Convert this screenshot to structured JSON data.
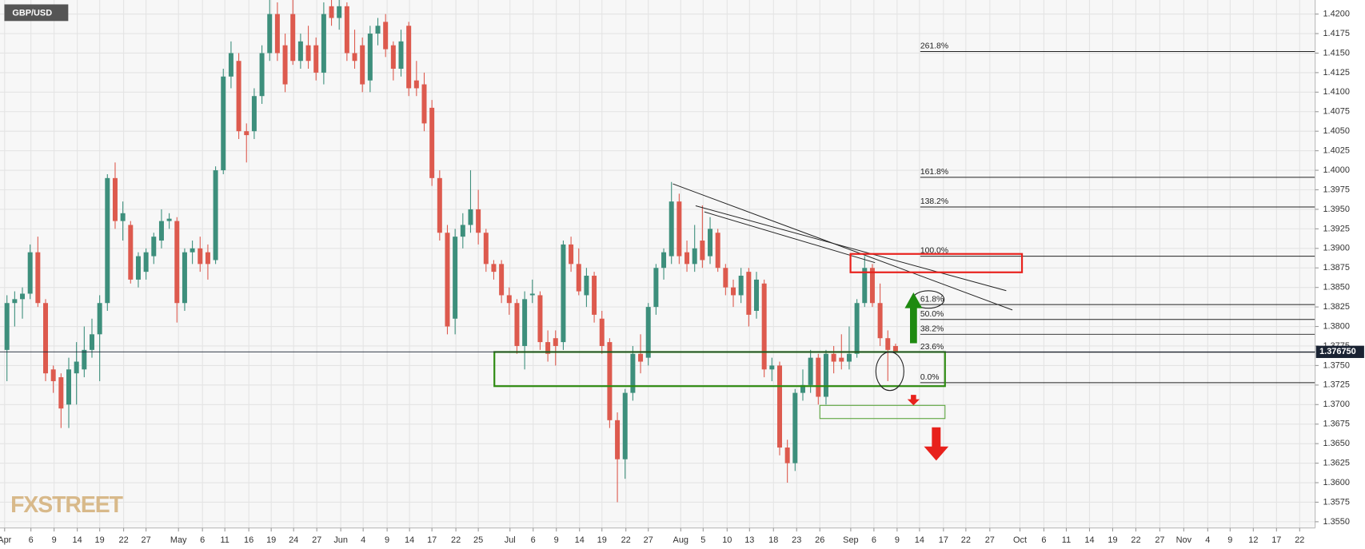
{
  "chart_data": {
    "type": "candlestick",
    "title": "GBP/USD",
    "watermark": "FXSTREET",
    "up_color": "#3d8f7c",
    "down_color": "#dd5a4e",
    "grid": true,
    "ylim": [
      1.3542,
      1.4218
    ],
    "yticks": [
      {
        "value": 1.355,
        "label": "1.3550"
      },
      {
        "value": 1.3575,
        "label": "1.3575"
      },
      {
        "value": 1.36,
        "label": "1.3600"
      },
      {
        "value": 1.3625,
        "label": "1.3625"
      },
      {
        "value": 1.365,
        "label": "1.3650"
      },
      {
        "value": 1.3675,
        "label": "1.3675"
      },
      {
        "value": 1.37,
        "label": "1.3700"
      },
      {
        "value": 1.3725,
        "label": "1.3725"
      },
      {
        "value": 1.375,
        "label": "1.3750"
      },
      {
        "value": 1.3775,
        "label": "1.3775"
      },
      {
        "value": 1.38,
        "label": "1.3800"
      },
      {
        "value": 1.3825,
        "label": "1.3825"
      },
      {
        "value": 1.385,
        "label": "1.3850"
      },
      {
        "value": 1.3875,
        "label": "1.3875"
      },
      {
        "value": 1.39,
        "label": "1.3900"
      },
      {
        "value": 1.3925,
        "label": "1.3925"
      },
      {
        "value": 1.395,
        "label": "1.3950"
      },
      {
        "value": 1.3975,
        "label": "1.3975"
      },
      {
        "value": 1.4,
        "label": "1.4000"
      },
      {
        "value": 1.4025,
        "label": "1.4025"
      },
      {
        "value": 1.405,
        "label": "1.4050"
      },
      {
        "value": 1.4075,
        "label": "1.4075"
      },
      {
        "value": 1.41,
        "label": "1.4100"
      },
      {
        "value": 1.4125,
        "label": "1.4125"
      },
      {
        "value": 1.415,
        "label": "1.4150"
      },
      {
        "value": 1.4175,
        "label": "1.4175"
      },
      {
        "value": 1.42,
        "label": "1.4200"
      }
    ],
    "xlim": [
      -0.9,
      169.3
    ],
    "xticks": [
      {
        "value": -0.3,
        "label": "Apr"
      },
      {
        "value": 3.1,
        "label": "6"
      },
      {
        "value": 6.1,
        "label": "9"
      },
      {
        "value": 9.1,
        "label": "14"
      },
      {
        "value": 12,
        "label": "19"
      },
      {
        "value": 15.1,
        "label": "22"
      },
      {
        "value": 18,
        "label": "27"
      },
      {
        "value": 22.2,
        "label": "May"
      },
      {
        "value": 25.3,
        "label": "6"
      },
      {
        "value": 28.2,
        "label": "11"
      },
      {
        "value": 31.3,
        "label": "16"
      },
      {
        "value": 34.2,
        "label": "19"
      },
      {
        "value": 37.1,
        "label": "24"
      },
      {
        "value": 40.1,
        "label": "27"
      },
      {
        "value": 43.2,
        "label": "Jun"
      },
      {
        "value": 46.1,
        "label": "4"
      },
      {
        "value": 49.2,
        "label": "9"
      },
      {
        "value": 52.1,
        "label": "14"
      },
      {
        "value": 55,
        "label": "17"
      },
      {
        "value": 58.1,
        "label": "22"
      },
      {
        "value": 61,
        "label": "25"
      },
      {
        "value": 65.1,
        "label": "Jul"
      },
      {
        "value": 68.1,
        "label": "6"
      },
      {
        "value": 71.1,
        "label": "9"
      },
      {
        "value": 74.1,
        "label": "14"
      },
      {
        "value": 77,
        "label": "19"
      },
      {
        "value": 80.1,
        "label": "22"
      },
      {
        "value": 83,
        "label": "27"
      },
      {
        "value": 87.2,
        "label": "Aug"
      },
      {
        "value": 90.1,
        "label": "5"
      },
      {
        "value": 93.2,
        "label": "10"
      },
      {
        "value": 96.1,
        "label": "13"
      },
      {
        "value": 99.2,
        "label": "18"
      },
      {
        "value": 102.2,
        "label": "23"
      },
      {
        "value": 105.2,
        "label": "26"
      },
      {
        "value": 109.2,
        "label": "Sep"
      },
      {
        "value": 112.2,
        "label": "6"
      },
      {
        "value": 115.2,
        "label": "9"
      },
      {
        "value": 118.1,
        "label": "14"
      },
      {
        "value": 121.2,
        "label": "17"
      },
      {
        "value": 124.1,
        "label": "22"
      },
      {
        "value": 127.2,
        "label": "27"
      },
      {
        "value": 131.1,
        "label": "Oct"
      },
      {
        "value": 134.2,
        "label": "6"
      },
      {
        "value": 137.1,
        "label": "11"
      },
      {
        "value": 140.1,
        "label": "14"
      },
      {
        "value": 143.1,
        "label": "19"
      },
      {
        "value": 146.1,
        "label": "22"
      },
      {
        "value": 149.2,
        "label": "27"
      },
      {
        "value": 152.3,
        "label": "Nov"
      },
      {
        "value": 155.4,
        "label": "4"
      },
      {
        "value": 158.3,
        "label": "9"
      },
      {
        "value": 161.3,
        "label": "12"
      },
      {
        "value": 164.3,
        "label": "17"
      },
      {
        "value": 167.3,
        "label": "22"
      }
    ],
    "last_price": {
      "value": 1.37675,
      "label": "1.376750"
    },
    "levels_start": 118.2,
    "levels": [
      {
        "value": 1.4152,
        "label": "261.8%"
      },
      {
        "value": 1.3991,
        "label": "161.8%"
      },
      {
        "value": 1.3953,
        "label": "138.2%"
      },
      {
        "value": 1.389,
        "label": "100.0%"
      },
      {
        "value": 1.3828,
        "label": "61.8%"
      },
      {
        "value": 1.3809,
        "label": "50.0%"
      },
      {
        "value": 1.379,
        "label": "38.2%"
      },
      {
        "value": 1.3767,
        "label": "23.6%"
      },
      {
        "value": 1.3728,
        "label": "0.0%"
      }
    ],
    "candles": [
      [
        1.377,
        1.384,
        1.373,
        1.383
      ],
      [
        1.383,
        1.3845,
        1.38,
        1.3835
      ],
      [
        1.3835,
        1.385,
        1.381,
        1.3842
      ],
      [
        1.3842,
        1.3905,
        1.3835,
        1.3895
      ],
      [
        1.3895,
        1.3915,
        1.3825,
        1.383
      ],
      [
        1.383,
        1.3835,
        1.373,
        1.374
      ],
      [
        1.3745,
        1.375,
        1.3715,
        1.373
      ],
      [
        1.3735,
        1.374,
        1.367,
        1.3695
      ],
      [
        1.37,
        1.376,
        1.367,
        1.3745
      ],
      [
        1.374,
        1.378,
        1.37,
        1.3755
      ],
      [
        1.3745,
        1.38,
        1.3735,
        1.377
      ],
      [
        1.377,
        1.381,
        1.376,
        1.379
      ],
      [
        1.379,
        1.384,
        1.373,
        1.383
      ],
      [
        1.383,
        1.3995,
        1.382,
        1.399
      ],
      [
        1.399,
        1.401,
        1.3925,
        1.3935
      ],
      [
        1.3935,
        1.396,
        1.391,
        1.3945
      ],
      [
        1.393,
        1.3935,
        1.3855,
        1.386
      ],
      [
        1.386,
        1.3895,
        1.385,
        1.389
      ],
      [
        1.387,
        1.39,
        1.386,
        1.3895
      ],
      [
        1.389,
        1.392,
        1.388,
        1.3915
      ],
      [
        1.391,
        1.395,
        1.39,
        1.3935
      ],
      [
        1.3935,
        1.3945,
        1.3925,
        1.3938
      ],
      [
        1.3935,
        1.394,
        1.3805,
        1.383
      ],
      [
        1.383,
        1.39,
        1.382,
        1.3895
      ],
      [
        1.3895,
        1.391,
        1.388,
        1.39
      ],
      [
        1.39,
        1.3915,
        1.387,
        1.388
      ],
      [
        1.3895,
        1.3905,
        1.386,
        1.388
      ],
      [
        1.3885,
        1.4005,
        1.388,
        1.4
      ],
      [
        1.4,
        1.413,
        1.3995,
        1.412
      ],
      [
        1.412,
        1.4165,
        1.4105,
        1.415
      ],
      [
        1.414,
        1.415,
        1.404,
        1.405
      ],
      [
        1.405,
        1.406,
        1.401,
        1.4045
      ],
      [
        1.405,
        1.4105,
        1.404,
        1.4095
      ],
      [
        1.4095,
        1.416,
        1.4085,
        1.415
      ],
      [
        1.415,
        1.423,
        1.414,
        1.42
      ],
      [
        1.42,
        1.4215,
        1.414,
        1.415
      ],
      [
        1.416,
        1.4175,
        1.41,
        1.411
      ],
      [
        1.42,
        1.422,
        1.4135,
        1.414
      ],
      [
        1.414,
        1.4175,
        1.413,
        1.4165
      ],
      [
        1.416,
        1.4185,
        1.413,
        1.414
      ],
      [
        1.416,
        1.417,
        1.4115,
        1.4125
      ],
      [
        1.4125,
        1.4215,
        1.411,
        1.42
      ],
      [
        1.421,
        1.422,
        1.4185,
        1.4195
      ],
      [
        1.4195,
        1.422,
        1.418,
        1.421
      ],
      [
        1.421,
        1.4215,
        1.414,
        1.415
      ],
      [
        1.415,
        1.418,
        1.413,
        1.414
      ],
      [
        1.416,
        1.417,
        1.41,
        1.411
      ],
      [
        1.4115,
        1.4185,
        1.41,
        1.4175
      ],
      [
        1.4175,
        1.4195,
        1.416,
        1.4185
      ],
      [
        1.419,
        1.42,
        1.4145,
        1.4155
      ],
      [
        1.416,
        1.4165,
        1.4115,
        1.413
      ],
      [
        1.413,
        1.418,
        1.412,
        1.4165
      ],
      [
        1.4185,
        1.419,
        1.4095,
        1.4105
      ],
      [
        1.4115,
        1.414,
        1.4095,
        1.4105
      ],
      [
        1.411,
        1.4125,
        1.405,
        1.406
      ],
      [
        1.408,
        1.409,
        1.398,
        1.399
      ],
      [
        1.399,
        1.4,
        1.391,
        1.392
      ],
      [
        1.392,
        1.393,
        1.379,
        1.38
      ],
      [
        1.381,
        1.3925,
        1.379,
        1.3915
      ],
      [
        1.3915,
        1.3945,
        1.39,
        1.393
      ],
      [
        1.393,
        1.4,
        1.392,
        1.395
      ],
      [
        1.395,
        1.3975,
        1.3905,
        1.392
      ],
      [
        1.392,
        1.3925,
        1.387,
        1.388
      ],
      [
        1.388,
        1.3885,
        1.386,
        1.387
      ],
      [
        1.388,
        1.3885,
        1.383,
        1.384
      ],
      [
        1.384,
        1.385,
        1.3815,
        1.383
      ],
      [
        1.383,
        1.3835,
        1.3765,
        1.3775
      ],
      [
        1.3775,
        1.3845,
        1.3745,
        1.3835
      ],
      [
        1.384,
        1.386,
        1.383,
        1.3842
      ],
      [
        1.384,
        1.3845,
        1.377,
        1.378
      ],
      [
        1.378,
        1.3795,
        1.3755,
        1.3765
      ],
      [
        1.3785,
        1.3795,
        1.375,
        1.3775
      ],
      [
        1.378,
        1.391,
        1.377,
        1.3905
      ],
      [
        1.3905,
        1.3915,
        1.387,
        1.388
      ],
      [
        1.388,
        1.39,
        1.384,
        1.3845
      ],
      [
        1.384,
        1.3875,
        1.3825,
        1.3865
      ],
      [
        1.3865,
        1.387,
        1.3805,
        1.3815
      ],
      [
        1.381,
        1.382,
        1.3765,
        1.3775
      ],
      [
        1.378,
        1.3785,
        1.367,
        1.368
      ],
      [
        1.368,
        1.369,
        1.3575,
        1.363
      ],
      [
        1.363,
        1.372,
        1.3605,
        1.3715
      ],
      [
        1.3715,
        1.3775,
        1.3705,
        1.3765
      ],
      [
        1.3765,
        1.379,
        1.374,
        1.3755
      ],
      [
        1.376,
        1.383,
        1.375,
        1.3825
      ],
      [
        1.3825,
        1.388,
        1.3815,
        1.3875
      ],
      [
        1.3875,
        1.39,
        1.386,
        1.3895
      ],
      [
        1.389,
        1.3985,
        1.388,
        1.396
      ],
      [
        1.396,
        1.397,
        1.388,
        1.389
      ],
      [
        1.3895,
        1.391,
        1.387,
        1.388
      ],
      [
        1.388,
        1.393,
        1.387,
        1.39
      ],
      [
        1.391,
        1.3955,
        1.3875,
        1.3885
      ],
      [
        1.389,
        1.394,
        1.388,
        1.3925
      ],
      [
        1.392,
        1.3925,
        1.387,
        1.3875
      ],
      [
        1.3875,
        1.388,
        1.384,
        1.385
      ],
      [
        1.385,
        1.386,
        1.3825,
        1.384
      ],
      [
        1.384,
        1.3875,
        1.383,
        1.3865
      ],
      [
        1.387,
        1.3875,
        1.38,
        1.3815
      ],
      [
        1.382,
        1.387,
        1.381,
        1.386
      ],
      [
        1.3855,
        1.386,
        1.3735,
        1.3745
      ],
      [
        1.3745,
        1.376,
        1.373,
        1.375
      ],
      [
        1.375,
        1.3755,
        1.3635,
        1.3645
      ],
      [
        1.3645,
        1.3655,
        1.36,
        1.3625
      ],
      [
        1.3625,
        1.372,
        1.3615,
        1.3715
      ],
      [
        1.3715,
        1.3745,
        1.3705,
        1.3725
      ],
      [
        1.3725,
        1.377,
        1.3715,
        1.376
      ],
      [
        1.376,
        1.3765,
        1.37,
        1.371
      ],
      [
        1.371,
        1.377,
        1.37,
        1.3765
      ],
      [
        1.3765,
        1.3775,
        1.374,
        1.3755
      ],
      [
        1.376,
        1.379,
        1.3745,
        1.3755
      ],
      [
        1.3755,
        1.38,
        1.3745,
        1.3765
      ],
      [
        1.3765,
        1.3835,
        1.376,
        1.383
      ],
      [
        1.383,
        1.389,
        1.3825,
        1.3875
      ],
      [
        1.3875,
        1.388,
        1.3825,
        1.383
      ],
      [
        1.383,
        1.3855,
        1.3775,
        1.3785
      ],
      [
        1.3785,
        1.3795,
        1.373,
        1.377
      ],
      [
        1.3775,
        1.3778,
        1.3765,
        1.3768
      ]
    ]
  }
}
